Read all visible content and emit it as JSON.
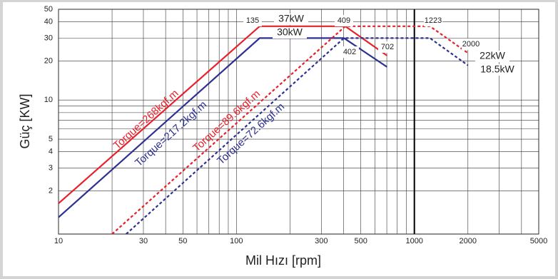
{
  "chart_data": {
    "type": "line",
    "xlabel": "Mil Hızı [rpm]",
    "ylabel": "Güç [KW]",
    "log_x": true,
    "log_y": true,
    "grid": true,
    "xlim": [
      10,
      5000
    ],
    "ylim": [
      0.93,
      50
    ],
    "xticks": [
      10,
      30,
      50,
      100,
      300,
      500,
      1000,
      2000,
      5000
    ],
    "yticks": [
      2,
      3,
      4,
      5,
      10,
      20,
      30,
      40,
      50
    ],
    "xminor": [
      20,
      40,
      60,
      70,
      80,
      90,
      200,
      400,
      600,
      700,
      800,
      900,
      3000,
      4000
    ],
    "yminor": [
      6,
      7,
      8,
      9
    ],
    "xline": 1000,
    "series": [
      {
        "name": "Torque=268kgf.m",
        "color": "#e8202a",
        "dashed": false,
        "x": [
          10,
          135,
          409,
          702
        ],
        "values": [
          1.6,
          37,
          37,
          22
        ]
      },
      {
        "name": "Torque=217.2kgf.m",
        "color": "#2e3192",
        "dashed": false,
        "x": [
          10,
          135,
          402,
          702
        ],
        "values": [
          1.25,
          30,
          30,
          18
        ]
      },
      {
        "name": "Torque=89.6kgf.m",
        "color": "#e8202a",
        "dashed": true,
        "x": [
          20,
          409,
          1223,
          2000
        ],
        "values": [
          0.93,
          37,
          37,
          23
        ]
      },
      {
        "name": "Torque=72.6kgf.m",
        "color": "#2e3192",
        "dashed": true,
        "x": [
          24,
          402,
          1223,
          2000
        ],
        "values": [
          0.93,
          30,
          30,
          18.5
        ]
      }
    ],
    "annotations": [
      "135",
      "37kW",
      "409",
      "30kW",
      "402",
      "702",
      "1223",
      "2000",
      "22kW",
      "18.5kW"
    ]
  }
}
